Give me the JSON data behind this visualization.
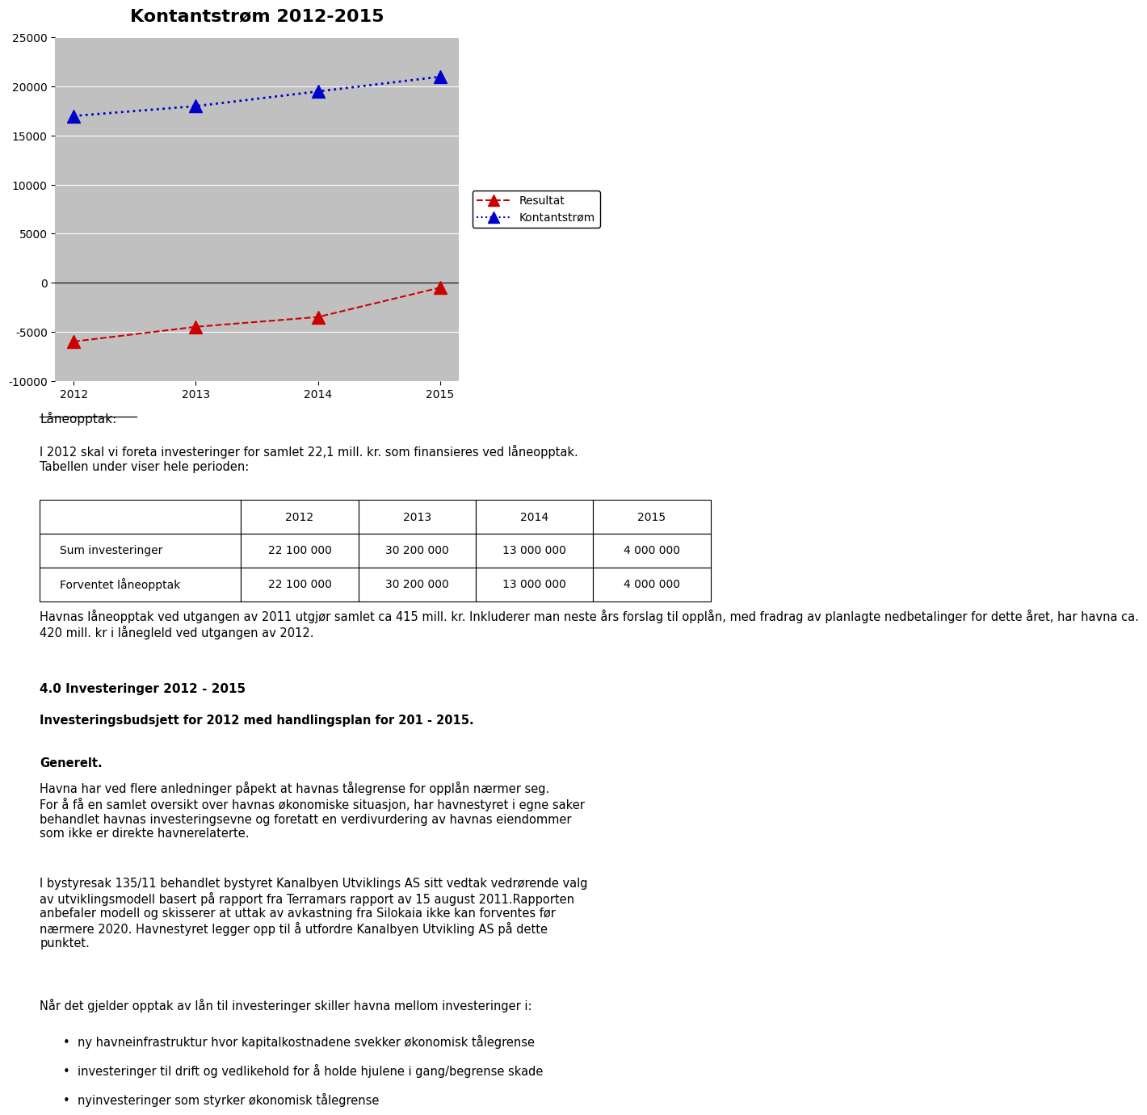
{
  "title": "Kontantstrøm 2012-2015",
  "years": [
    2012,
    2013,
    2014,
    2015
  ],
  "resultat": [
    -6000,
    -4500,
    -3500,
    -500
  ],
  "kontantstrom": [
    17000,
    18000,
    19500,
    21000
  ],
  "ylim": [
    -10000,
    25000
  ],
  "yticks": [
    -10000,
    -5000,
    0,
    5000,
    10000,
    15000,
    20000,
    25000
  ],
  "chart_bg": "#c0c0c0",
  "resultat_color": "#cc0000",
  "kontantstrom_color": "#0000cc",
  "legend_resultat": "Resultat",
  "legend_kontantstrom": "Kontantstrøm",
  "laneopptak_title": "Låneopptak:",
  "para1": "I 2012 skal vi foreta investeringer for samlet 22,1 mill. kr. som finansieres ved låneopptak.\nTabellen under viser hele perioden:",
  "table_headers": [
    "",
    "2012",
    "2013",
    "2014",
    "2015"
  ],
  "table_row1": [
    "Sum investeringer",
    "22 100 000",
    "30 200 000",
    "13 000 000",
    "4 000 000"
  ],
  "table_row2": [
    "Forventet låneopptak",
    "22 100 000",
    "30 200 000",
    "13 000 000",
    "4 000 000"
  ],
  "para2": "Havnas låneopptak ved utgangen av 2011 utgjør samlet ca 415 mill. kr. Inkluderer man neste års forslag til opplån, med fradrag av planlagte nedbetalinger for dette året, har havna ca.\n420 mill. kr i lånegleld ved utgangen av 2012.",
  "section_title": "4.0 Investeringer 2012 - 2015",
  "section_subtitle": "Investeringsbudsjett for 2012 med handlingsplan for 201 - 2015.",
  "generelt_title": "Generelt.",
  "generelt_text": "Havna har ved flere anledninger påpekt at havnas tålegrense for opplån nærmer seg.\nFor å få en samlet oversikt over havnas økonomiske situasjon, har havnestyret i egne saker\nbehandlet havnas investeringsevne og foretatt en verdivurdering av havnas eiendommer\nsom ikke er direkte havnerelaterte.",
  "bystyresak_text": "I bystyresak 135/11 behandlet bystyret Kanalbyen Utviklings AS sitt vedtak vedrørende valg\nav utviklingsmodell basert på rapport fra Terramars rapport av 15 august 2011.Rapporten\nanbefaler modell og skisserer at uttak av avkastning fra Silokaia ikke kan forventes før\nnærmere 2020. Havnestyret legger opp til å utfordre Kanalbyen Utvikling AS på dette\npunktet.",
  "nar_det_text": "Når det gjelder opptak av lån til investeringer skiller havna mellom investeringer i:",
  "bullet_points": [
    "ny havneinfrastruktur hvor kapitalkostnadene svekker økonomisk tålegrense",
    "investeringer til drift og vedlikehold for å holde hjulene i gang/begrense skade",
    "nyinvesteringer som styrker økonomisk tålegrense"
  ],
  "lm": 0.07,
  "fs_body": 10.5,
  "fs_title": 11
}
